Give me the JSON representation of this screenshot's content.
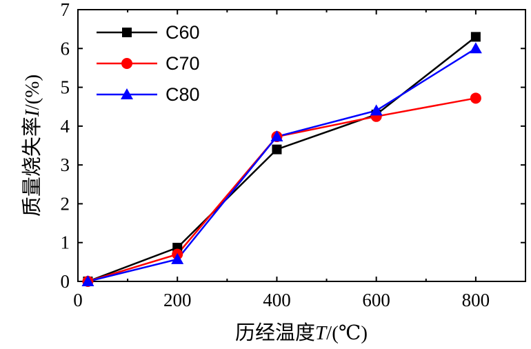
{
  "chart_data": {
    "type": "line",
    "title": "",
    "xlabel": "历经温度T/(℃)",
    "ylabel": "质量烧失率I/(%)",
    "xlabel_parts": {
      "prefix": "历经温度",
      "var": "T",
      "suffix": "/(℃)"
    },
    "ylabel_parts": {
      "prefix": "质量烧失率",
      "var": "I",
      "suffix": "/(%)"
    },
    "xlim": [
      0,
      900
    ],
    "ylim": [
      0,
      7
    ],
    "xticks": [
      0,
      200,
      400,
      600,
      800
    ],
    "yticks": [
      0,
      1,
      2,
      3,
      4,
      5,
      6,
      7
    ],
    "x_minor_ticks": [
      100,
      300,
      500,
      700,
      900
    ],
    "legend_position": "top-left",
    "series": [
      {
        "name": "C60",
        "color": "#000000",
        "marker": "square",
        "x": [
          20,
          200,
          400,
          600,
          800
        ],
        "y": [
          0.0,
          0.87,
          3.4,
          4.3,
          6.3
        ]
      },
      {
        "name": "C70",
        "color": "#ff0000",
        "marker": "circle",
        "x": [
          20,
          200,
          400,
          600,
          800
        ],
        "y": [
          0.0,
          0.7,
          3.73,
          4.25,
          4.72
        ]
      },
      {
        "name": "C80",
        "color": "#0000ff",
        "marker": "triangle",
        "x": [
          20,
          200,
          400,
          600,
          800
        ],
        "y": [
          0.0,
          0.57,
          3.73,
          4.4,
          6.0
        ]
      }
    ]
  }
}
